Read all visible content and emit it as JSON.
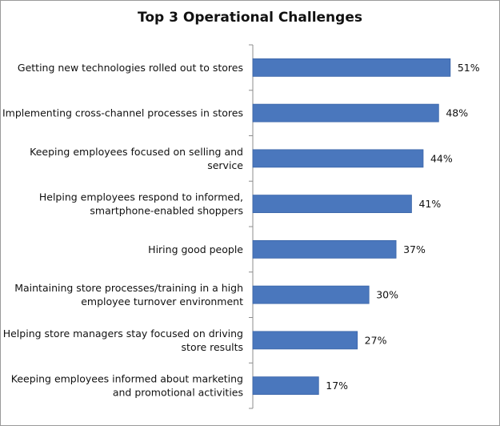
{
  "chart_data": {
    "type": "bar",
    "orientation": "horizontal",
    "title": "Top 3 Operational Challenges",
    "xlabel": "",
    "ylabel": "",
    "xlim": [
      0,
      60
    ],
    "grid": false,
    "legend": "none",
    "bar_color": "#4a77bd",
    "categories": [
      [
        "Getting new technologies rolled out to stores"
      ],
      [
        "Implementing cross-channel processes in stores"
      ],
      [
        "Keeping employees focused on selling and",
        "service"
      ],
      [
        "Helping employees respond to informed,",
        "smartphone-enabled shoppers"
      ],
      [
        "Hiring good people"
      ],
      [
        "Maintaining store processes/training in a high",
        "employee turnover environment"
      ],
      [
        "Helping store managers stay focused on driving",
        "store results"
      ],
      [
        "Keeping employees informed about marketing",
        "and promotional activities"
      ]
    ],
    "values": [
      51,
      48,
      44,
      41,
      37,
      30,
      27,
      17
    ],
    "value_labels": [
      "51%",
      "48%",
      "44%",
      "41%",
      "37%",
      "30%",
      "27%",
      "17%"
    ]
  }
}
